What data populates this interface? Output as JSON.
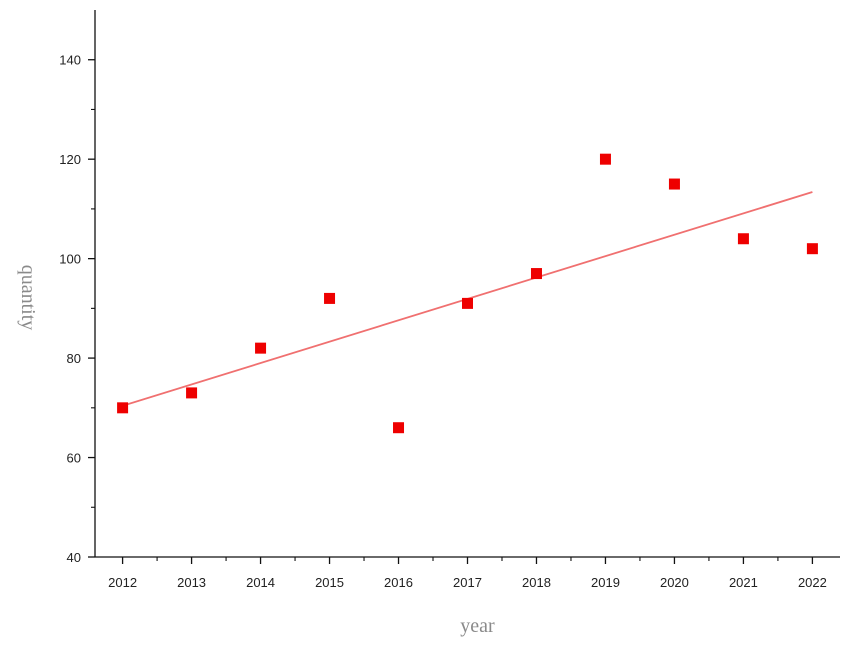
{
  "chart_data": {
    "type": "scatter",
    "title": "",
    "xlabel": "year",
    "ylabel": "quantity",
    "xlim": [
      2011.6,
      2022.4
    ],
    "ylim": [
      40,
      150
    ],
    "x_ticks": [
      2012,
      2013,
      2014,
      2015,
      2016,
      2017,
      2018,
      2019,
      2020,
      2021,
      2022
    ],
    "y_ticks": [
      40,
      60,
      80,
      100,
      120,
      140
    ],
    "grid": false,
    "legend": "none",
    "series": [
      {
        "x": [
          2012,
          2013,
          2014,
          2015,
          2016,
          2017,
          2018,
          2019,
          2020,
          2021,
          2022
        ],
        "y": [
          70,
          73,
          82,
          92,
          66,
          91,
          97,
          120,
          115,
          104,
          102
        ],
        "color": "#ee0000",
        "marker": "square"
      }
    ],
    "trendline": {
      "x": [
        2012,
        2022
      ],
      "y": [
        70.4,
        113.4
      ],
      "color": "#f07070"
    }
  }
}
